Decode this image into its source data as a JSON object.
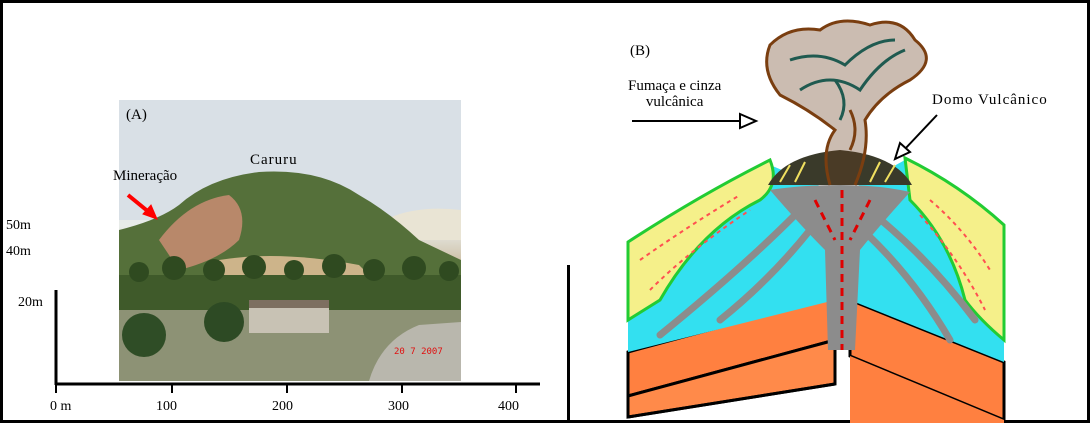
{
  "panel_a": {
    "letter": "(A)",
    "hill_label": "Caruru",
    "mining_label": "Mineração",
    "date_stamp": "20 7 2007",
    "y_labels": [
      "50m",
      "40m",
      "20m"
    ],
    "x_labels": [
      "0 m",
      "100",
      "200",
      "300",
      "400"
    ]
  },
  "panel_b": {
    "letter": "(B)",
    "smoke_label_line1": "Fumaça e cinza",
    "smoke_label_line2": "vulcânica",
    "dome_label": "Domo Vulcânico"
  },
  "colors": {
    "arrow_red": "#ff0000",
    "magma_red": "#e00000",
    "water_cyan": "#33e0f0",
    "vent_gray": "#8c8c8c",
    "base_orange": "#ff8040",
    "smoke_brown": "#7a3e10",
    "smoke_teal": "#1f5a50",
    "slope_green": "#22cc33",
    "slope_yellow": "#ffff40"
  }
}
